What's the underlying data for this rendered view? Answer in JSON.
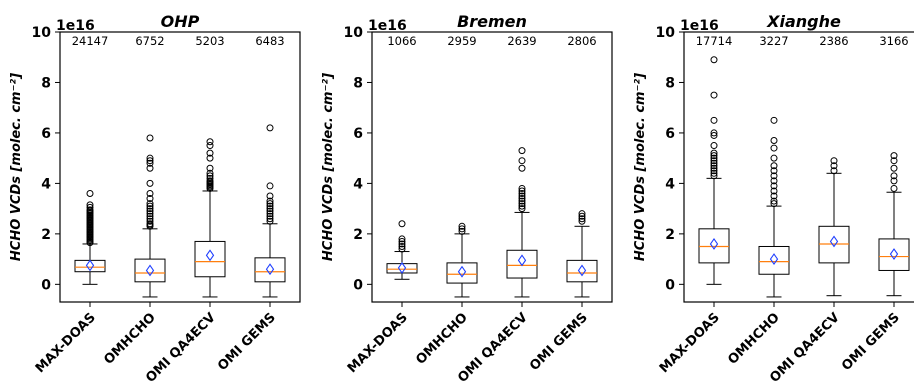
{
  "chart_data": [
    {
      "type": "box",
      "title": "OHP",
      "ylabel": "HCHO VCDs [molec. cm⁻²]",
      "offset_label": "1e16",
      "ylim": [
        -0.7,
        10
      ],
      "yticks": [
        0,
        2,
        4,
        6,
        8,
        10
      ],
      "categories": [
        "MAX-DOAS",
        "OMHCHO",
        "OMI QA4ECV",
        "OMI GEMS"
      ],
      "counts": [
        "24147",
        "6752",
        "5203",
        "6483"
      ],
      "boxes": [
        {
          "whisker_low": 0.0,
          "q1": 0.5,
          "median": 0.68,
          "q3": 0.95,
          "whisker_high": 1.6,
          "mean": 0.75,
          "fliers": [
            1.65,
            1.7,
            1.75,
            1.8,
            1.85,
            1.9,
            1.95,
            2.0,
            2.05,
            2.1,
            2.15,
            2.2,
            2.25,
            2.3,
            2.35,
            2.4,
            2.45,
            2.5,
            2.55,
            2.6,
            2.65,
            2.7,
            2.75,
            2.8,
            2.85,
            2.9,
            2.95,
            3.05,
            3.15,
            3.6
          ]
        },
        {
          "whisker_low": -0.5,
          "q1": 0.1,
          "median": 0.45,
          "q3": 1.0,
          "whisker_high": 2.2,
          "mean": 0.55,
          "fliers": [
            2.3,
            2.35,
            2.4,
            2.5,
            2.6,
            2.7,
            2.8,
            2.9,
            3.0,
            3.1,
            3.2,
            3.4,
            3.6,
            4.0,
            4.6,
            4.8,
            4.9,
            5.0,
            5.8
          ]
        },
        {
          "whisker_low": -0.5,
          "q1": 0.3,
          "median": 0.9,
          "q3": 1.7,
          "whisker_high": 3.7,
          "mean": 1.15,
          "fliers": [
            3.8,
            3.85,
            3.9,
            3.95,
            4.0,
            4.05,
            4.1,
            4.2,
            4.3,
            4.4,
            4.6,
            5.0,
            5.2,
            5.5,
            5.65
          ]
        },
        {
          "whisker_low": -0.5,
          "q1": 0.1,
          "median": 0.5,
          "q3": 1.05,
          "whisker_high": 2.4,
          "mean": 0.6,
          "fliers": [
            2.5,
            2.6,
            2.7,
            2.8,
            2.9,
            3.0,
            3.1,
            3.2,
            3.3,
            3.5,
            3.9,
            6.2
          ]
        }
      ]
    },
    {
      "type": "box",
      "title": "Bremen",
      "ylabel": "HCHO VCDs [molec. cm⁻²]",
      "offset_label": "1e16",
      "ylim": [
        -0.7,
        10
      ],
      "yticks": [
        0,
        2,
        4,
        6,
        8,
        10
      ],
      "categories": [
        "MAX-DOAS",
        "OMHCHO",
        "OMI QA4ECV",
        "OMI GEMS"
      ],
      "counts": [
        "1066",
        "2959",
        "2639",
        "2806"
      ],
      "boxes": [
        {
          "whisker_low": 0.2,
          "q1": 0.45,
          "median": 0.6,
          "q3": 0.82,
          "whisker_high": 1.3,
          "mean": 0.65,
          "fliers": [
            1.4,
            1.5,
            1.6,
            1.7,
            1.8,
            2.4
          ]
        },
        {
          "whisker_low": -0.5,
          "q1": 0.05,
          "median": 0.4,
          "q3": 0.85,
          "whisker_high": 2.0,
          "mean": 0.5,
          "fliers": [
            2.1,
            2.2,
            2.3
          ]
        },
        {
          "whisker_low": -0.5,
          "q1": 0.25,
          "median": 0.75,
          "q3": 1.35,
          "whisker_high": 2.85,
          "mean": 0.95,
          "fliers": [
            3.0,
            3.1,
            3.2,
            3.3,
            3.4,
            3.5,
            3.6,
            3.7,
            3.8,
            4.6,
            4.9,
            5.3
          ]
        },
        {
          "whisker_low": -0.5,
          "q1": 0.1,
          "median": 0.45,
          "q3": 0.95,
          "whisker_high": 2.3,
          "mean": 0.55,
          "fliers": [
            2.5,
            2.6,
            2.7,
            2.8
          ]
        }
      ]
    },
    {
      "type": "box",
      "title": "Xianghe",
      "ylabel": "HCHO VCDs [molec. cm⁻²]",
      "offset_label": "1e16",
      "ylim": [
        -0.7,
        10
      ],
      "yticks": [
        0,
        2,
        4,
        6,
        8,
        10
      ],
      "categories": [
        "MAX-DOAS",
        "OMHCHO",
        "OMI QA4ECV",
        "OMI GEMS"
      ],
      "counts": [
        "17714",
        "3227",
        "2386",
        "3166"
      ],
      "boxes": [
        {
          "whisker_low": 0.0,
          "q1": 0.85,
          "median": 1.5,
          "q3": 2.2,
          "whisker_high": 4.2,
          "mean": 1.6,
          "fliers": [
            4.3,
            4.4,
            4.5,
            4.6,
            4.7,
            4.8,
            4.9,
            5.0,
            5.1,
            5.2,
            5.5,
            5.9,
            6.0,
            6.5,
            7.5,
            8.9
          ]
        },
        {
          "whisker_low": -0.5,
          "q1": 0.4,
          "median": 0.9,
          "q3": 1.5,
          "whisker_high": 3.1,
          "mean": 1.0,
          "fliers": [
            3.2,
            3.3,
            3.5,
            3.7,
            3.9,
            4.1,
            4.3,
            4.5,
            4.7,
            5.0,
            5.4,
            5.7,
            6.5
          ]
        },
        {
          "whisker_low": -0.45,
          "q1": 0.85,
          "median": 1.6,
          "q3": 2.3,
          "whisker_high": 4.4,
          "mean": 1.7,
          "fliers": [
            4.5,
            4.7,
            4.9
          ]
        },
        {
          "whisker_low": -0.45,
          "q1": 0.55,
          "median": 1.1,
          "q3": 1.8,
          "whisker_high": 3.65,
          "mean": 1.2,
          "fliers": [
            3.8,
            4.1,
            4.3,
            4.6,
            4.9,
            5.1
          ]
        }
      ]
    }
  ]
}
